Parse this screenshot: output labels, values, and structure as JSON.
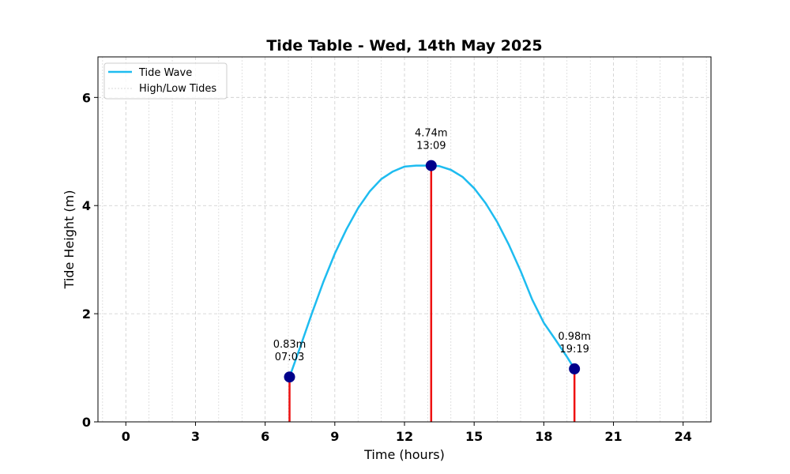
{
  "chart_data": {
    "type": "line",
    "title": "Tide Table - Wed, 14th May 2025",
    "xlabel": "Time (hours)",
    "ylabel": "Tide Height (m)",
    "xlim": [
      -1.2,
      25.2
    ],
    "ylim": [
      0,
      6.75
    ],
    "xticks": [
      0,
      3,
      6,
      9,
      12,
      15,
      18,
      21,
      24
    ],
    "xtick_labels": [
      "0",
      "3",
      "6",
      "9",
      "12",
      "15",
      "18",
      "21",
      "24"
    ],
    "yticks": [
      0,
      2,
      4,
      6
    ],
    "ytick_labels": [
      "0",
      "2",
      "4",
      "6"
    ],
    "minor_x_grid_step": 1,
    "grid": true,
    "legend": {
      "placement": "top-left",
      "entries": [
        "Tide Wave",
        "High/Low Tides"
      ]
    },
    "colors": {
      "wave": "#1ebcf0",
      "stem": "#ee1111",
      "marker": "#00008b",
      "grid": "#cccccc"
    },
    "series": [
      {
        "name": "Tide Wave",
        "x": [
          7.05,
          7.5,
          8,
          8.5,
          9,
          9.5,
          10,
          10.5,
          11,
          11.5,
          12,
          12.5,
          13,
          13.15,
          13.5,
          14,
          14.5,
          15,
          15.5,
          16,
          16.5,
          17,
          17.5,
          18,
          18.5,
          19,
          19.32
        ],
        "y": [
          0.83,
          1.37,
          1.99,
          2.58,
          3.11,
          3.56,
          3.95,
          4.26,
          4.49,
          4.63,
          4.72,
          4.74,
          4.74,
          4.74,
          4.73,
          4.66,
          4.53,
          4.32,
          4.04,
          3.69,
          3.27,
          2.79,
          2.26,
          1.83,
          1.52,
          1.2,
          0.98
        ]
      }
    ],
    "tides": [
      {
        "time_h": 7.05,
        "height": 0.83,
        "height_label": "0.83m",
        "time_label": "07:03"
      },
      {
        "time_h": 13.15,
        "height": 4.74,
        "height_label": "4.74m",
        "time_label": "13:09"
      },
      {
        "time_h": 19.32,
        "height": 0.98,
        "height_label": "0.98m",
        "time_label": "19:19"
      }
    ]
  }
}
